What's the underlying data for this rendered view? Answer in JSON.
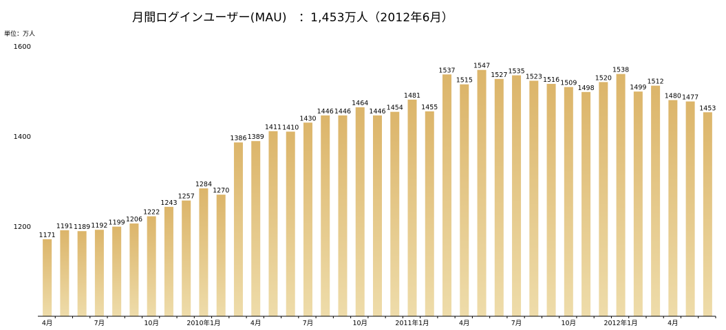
{
  "chart_data": {
    "type": "bar",
    "title": "月間ログインユーザー(MAU)　：1,453万人（2012年6月）",
    "unit_label": "単位：万人",
    "xlabel": "",
    "ylabel": "",
    "ylim": [
      1000,
      1600
    ],
    "y_ticks": [
      1200,
      1400,
      1600
    ],
    "grid": false,
    "legend": "none",
    "bar_color_top": "#dcb56a",
    "bar_color_bottom": "#eedcaa",
    "categories": [
      "4月",
      "5月",
      "6月",
      "7月",
      "8月",
      "9月",
      "10月",
      "11月",
      "12月",
      "2010年1月",
      "2月",
      "3月",
      "4月",
      "5月",
      "6月",
      "7月",
      "8月",
      "9月",
      "10月",
      "11月",
      "12月",
      "2011年1月",
      "2月",
      "3月",
      "4月",
      "5月",
      "6月",
      "7月",
      "8月",
      "9月",
      "10月",
      "11月",
      "12月",
      "2012年1月",
      "2月",
      "3月",
      "4月",
      "5月",
      "6月"
    ],
    "x_tick_labels": [
      "4月",
      "",
      "",
      "7月",
      "",
      "",
      "10月",
      "",
      "",
      "2010年1月",
      "",
      "",
      "4月",
      "",
      "",
      "7月",
      "",
      "",
      "10月",
      "",
      "",
      "2011年1月",
      "",
      "",
      "4月",
      "",
      "",
      "7月",
      "",
      "",
      "10月",
      "",
      "",
      "2012年1月",
      "",
      "",
      "4月",
      "",
      ""
    ],
    "values": [
      1171,
      1191,
      1189,
      1192,
      1199,
      1206,
      1222,
      1243,
      1257,
      1284,
      1270,
      1386,
      1389,
      1411,
      1410,
      1430,
      1446,
      1446,
      1464,
      1446,
      1454,
      1481,
      1455,
      1537,
      1515,
      1547,
      1527,
      1535,
      1523,
      1516,
      1509,
      1498,
      1520,
      1538,
      1499,
      1512,
      1480,
      1477,
      1453
    ]
  }
}
